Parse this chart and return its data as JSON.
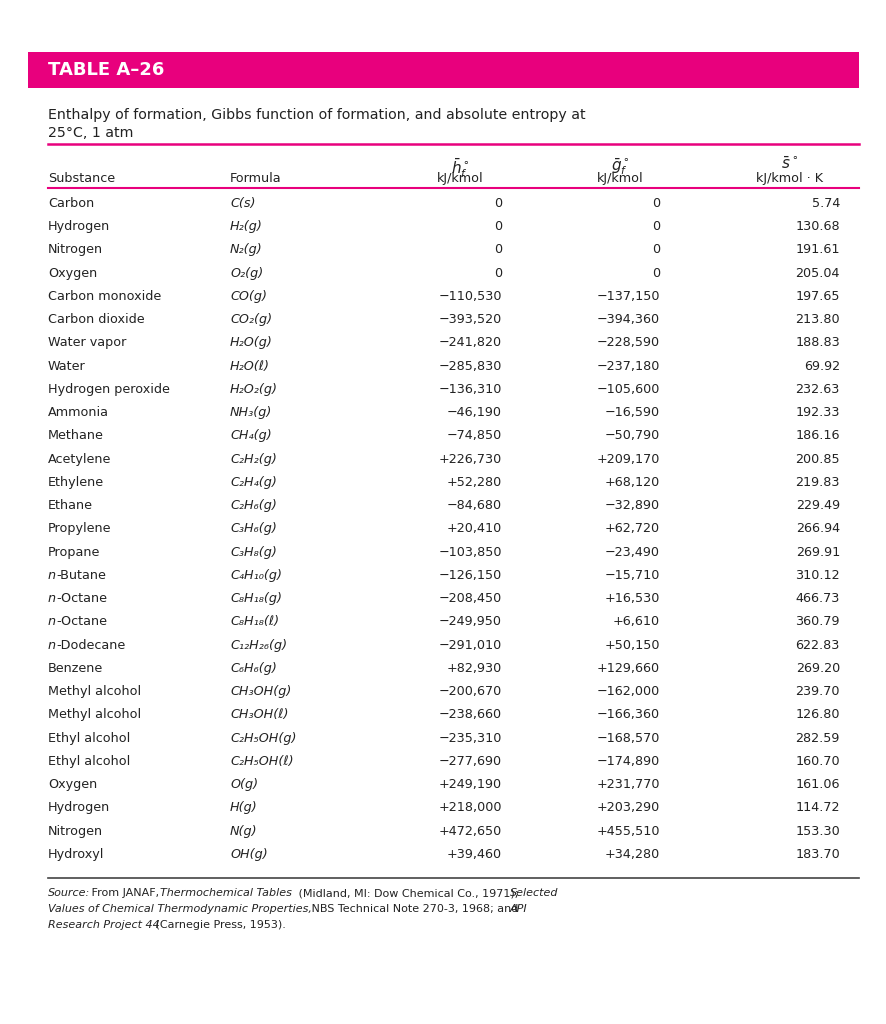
{
  "table_title": "TABLE A–26",
  "subtitle": "Enthalpy of formation, Gibbs function of formation, and absolute entropy at\n25°C, 1 atm",
  "title_bg_color": "#E8007D",
  "title_text_color": "#FFFFFF",
  "header_line_color": "#E8007D",
  "rows": [
    [
      "Carbon",
      "C(s)",
      "0",
      "0",
      "5.74"
    ],
    [
      "Hydrogen",
      "H₂(g)",
      "0",
      "0",
      "130.68"
    ],
    [
      "Nitrogen",
      "N₂(g)",
      "0",
      "0",
      "191.61"
    ],
    [
      "Oxygen",
      "O₂(g)",
      "0",
      "0",
      "205.04"
    ],
    [
      "Carbon monoxide",
      "CO(g)",
      "−110,530",
      "−137,150",
      "197.65"
    ],
    [
      "Carbon dioxide",
      "CO₂(g)",
      "−393,520",
      "−394,360",
      "213.80"
    ],
    [
      "Water vapor",
      "H₂O(g)",
      "−241,820",
      "−228,590",
      "188.83"
    ],
    [
      "Water",
      "H₂O(ℓ)",
      "−285,830",
      "−237,180",
      "69.92"
    ],
    [
      "Hydrogen peroxide",
      "H₂O₂(g)",
      "−136,310",
      "−105,600",
      "232.63"
    ],
    [
      "Ammonia",
      "NH₃(g)",
      "−46,190",
      "−16,590",
      "192.33"
    ],
    [
      "Methane",
      "CH₄(g)",
      "−74,850",
      "−50,790",
      "186.16"
    ],
    [
      "Acetylene",
      "C₂H₂(g)",
      "+226,730",
      "+209,170",
      "200.85"
    ],
    [
      "Ethylene",
      "C₂H₄(g)",
      "+52,280",
      "+68,120",
      "219.83"
    ],
    [
      "Ethane",
      "C₂H₆(g)",
      "−84,680",
      "−32,890",
      "229.49"
    ],
    [
      "Propylene",
      "C₃H₆(g)",
      "+20,410",
      "+62,720",
      "266.94"
    ],
    [
      "Propane",
      "C₃H₈(g)",
      "−103,850",
      "−23,490",
      "269.91"
    ],
    [
      "n-Butane",
      "C₄H₁₀(g)",
      "−126,150",
      "−15,710",
      "310.12"
    ],
    [
      "n-Octane",
      "C₈H₁₈(g)",
      "−208,450",
      "+16,530",
      "466.73"
    ],
    [
      "n-Octane",
      "C₈H₁₈(ℓ)",
      "−249,950",
      "+6,610",
      "360.79"
    ],
    [
      "n-Dodecane",
      "C₁₂H₂₆(g)",
      "−291,010",
      "+50,150",
      "622.83"
    ],
    [
      "Benzene",
      "C₆H₆(g)",
      "+82,930",
      "+129,660",
      "269.20"
    ],
    [
      "Methyl alcohol",
      "CH₃OH(g)",
      "−200,670",
      "−162,000",
      "239.70"
    ],
    [
      "Methyl alcohol",
      "CH₃OH(ℓ)",
      "−238,660",
      "−166,360",
      "126.80"
    ],
    [
      "Ethyl alcohol",
      "C₂H₅OH(g)",
      "−235,310",
      "−168,570",
      "282.59"
    ],
    [
      "Ethyl alcohol",
      "C₂H₅OH(ℓ)",
      "−277,690",
      "−174,890",
      "160.70"
    ],
    [
      "Oxygen",
      "O(g)",
      "+249,190",
      "+231,770",
      "161.06"
    ],
    [
      "Hydrogen",
      "H(g)",
      "+218,000",
      "+203,290",
      "114.72"
    ],
    [
      "Nitrogen",
      "N(g)",
      "+472,650",
      "+455,510",
      "153.30"
    ],
    [
      "Hydroxyl",
      "OH(g)",
      "+39,460",
      "+34,280",
      "183.70"
    ]
  ],
  "source_text_parts": [
    [
      "italic",
      "Source:"
    ],
    [
      "normal",
      " From JANAF, "
    ],
    [
      "italic",
      "Thermochemical Tables"
    ],
    [
      "normal",
      " (Midland, MI: Dow Chemical Co., 1971); "
    ],
    [
      "italic",
      "Selected\nValues of Chemical Thermodynamic Properties,"
    ],
    [
      "normal",
      " NBS Technical Note 270-3, 1968; and "
    ],
    [
      "italic",
      "API\nResearch Project 44"
    ],
    [
      "normal",
      " (Carnegie Press, 1953)."
    ]
  ],
  "bg_color": "#FFFFFF",
  "text_color": "#222222",
  "font_size": 9.2
}
